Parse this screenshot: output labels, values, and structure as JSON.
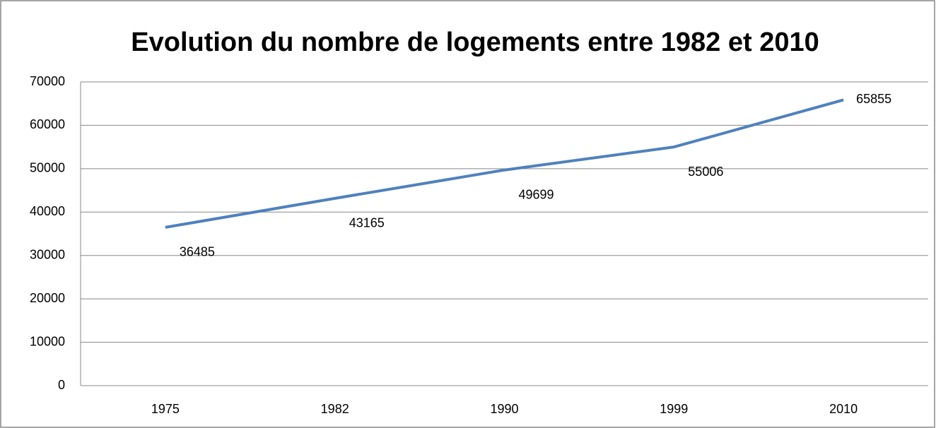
{
  "chart_data": {
    "type": "line",
    "title": "Evolution du nombre de logements entre 1982 et 2010",
    "categories": [
      "1975",
      "1982",
      "1990",
      "1999",
      "2010"
    ],
    "values": [
      36485,
      43165,
      49699,
      55006,
      65855
    ],
    "color": "#4f81bd",
    "ylim": [
      0,
      70000
    ],
    "yticks": [
      0,
      10000,
      20000,
      30000,
      40000,
      50000,
      60000,
      70000
    ],
    "grid": true,
    "data_labels": true
  }
}
